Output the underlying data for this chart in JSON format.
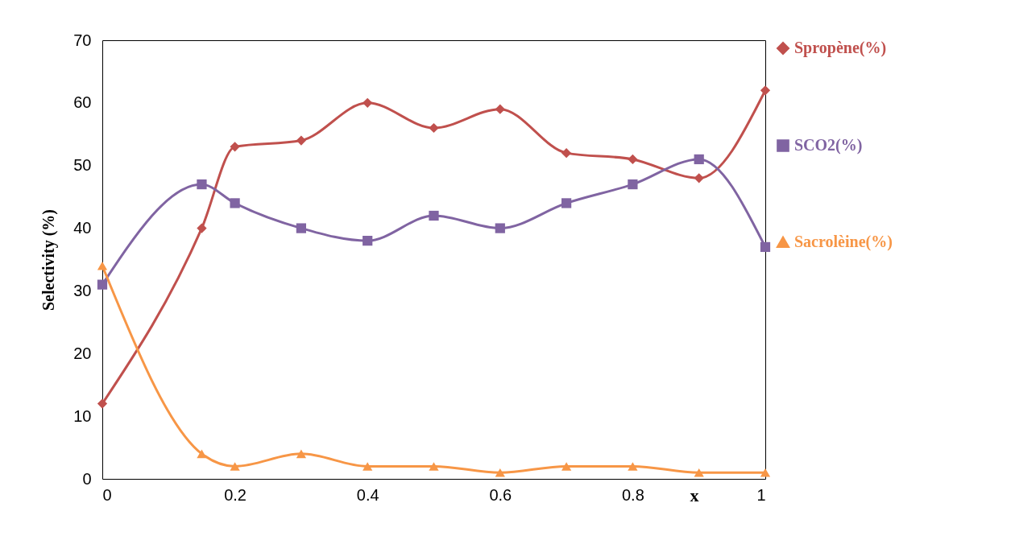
{
  "chart_data": {
    "type": "line",
    "xlabel": "x",
    "ylabel": "Selectivity (%)",
    "x": [
      0,
      0.15,
      0.2,
      0.3,
      0.4,
      0.5,
      0.6,
      0.7,
      0.8,
      0.9,
      1
    ],
    "xlim": [
      0,
      1
    ],
    "xticks": [
      0,
      0.2,
      0.4,
      0.6,
      0.8,
      1
    ],
    "ylim": [
      0,
      70
    ],
    "yticks": [
      0,
      10,
      20,
      30,
      40,
      50,
      60,
      70
    ],
    "grid": false,
    "legend": "right",
    "series": [
      {
        "name": "Spropène(%)",
        "color": "#c0504d",
        "marker": "diamond",
        "values": [
          12,
          40,
          53,
          54,
          60,
          56,
          59,
          52,
          51,
          48,
          62
        ]
      },
      {
        "name": "SCO2(%)",
        "color": "#8064a2",
        "marker": "square",
        "values": [
          31,
          47,
          44,
          40,
          38,
          42,
          40,
          44,
          47,
          51,
          37
        ]
      },
      {
        "name": "Sacrolèine(%)",
        "color": "#f79646",
        "marker": "triangle",
        "values": [
          34,
          4,
          2,
          4,
          2,
          2,
          1,
          2,
          2,
          1,
          1
        ]
      }
    ]
  }
}
